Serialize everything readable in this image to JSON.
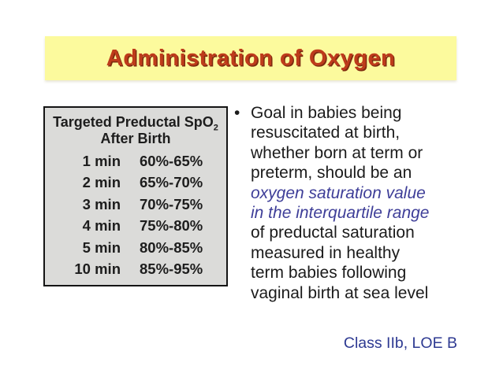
{
  "slide": {
    "title": "Administration of Oxygen",
    "title_color": "#BE3B1B",
    "title_shadow_color": "#7E2B10",
    "banner_color": "#FCFA9D",
    "background_color": "#FFFFFF"
  },
  "table": {
    "heading_line1": "Targeted Preductal SpO",
    "heading_subscript": "2",
    "heading_line2": "After Birth",
    "background_color": "#DBDBD9",
    "border_color": "#141414",
    "rows": [
      {
        "time": "1 min",
        "range": "60%-65%"
      },
      {
        "time": "2 min",
        "range": "65%-70%"
      },
      {
        "time": "3 min",
        "range": "70%-75%"
      },
      {
        "time": "4 min",
        "range": "75%-80%"
      },
      {
        "time": "5 min",
        "range": "80%-85%"
      },
      {
        "time": "10 min",
        "range": "85%-95%"
      }
    ]
  },
  "bullet": {
    "marker": "•",
    "emphasis_color": "#3E3E98",
    "lines": [
      {
        "text": "Goal in babies being",
        "style": "normal"
      },
      {
        "text": "resuscitated at birth,",
        "style": "normal"
      },
      {
        "text": "whether born at term or",
        "style": "normal"
      },
      {
        "text": "preterm, should be an",
        "style": "normal"
      },
      {
        "text": "oxygen saturation value",
        "style": "emphasis"
      },
      {
        "text": "in the interquartile range",
        "style": "emphasis"
      },
      {
        "text": "of preductal saturation",
        "style": "normal"
      },
      {
        "text": "measured in healthy",
        "style": "normal"
      },
      {
        "text": "term babies following",
        "style": "normal"
      },
      {
        "text": "vaginal birth at sea level",
        "style": "normal"
      }
    ]
  },
  "footer": {
    "classification": "Class IIb, LOE B",
    "color": "#2E3A92"
  }
}
